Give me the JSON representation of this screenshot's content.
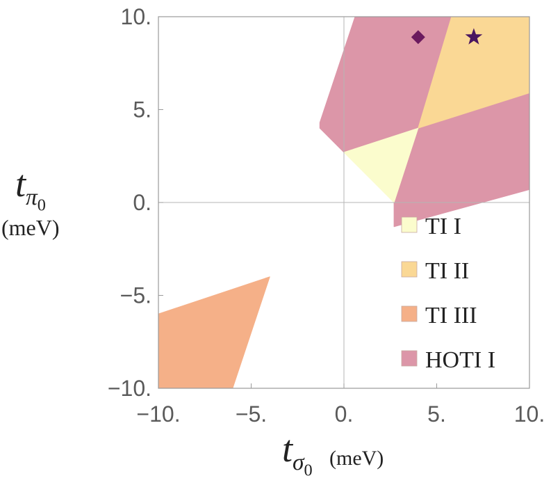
{
  "chart_data": {
    "type": "area",
    "xlabel": {
      "var": "t",
      "sub": "σ",
      "subsub": "0",
      "unit": "(meV)"
    },
    "ylabel": {
      "var": "t",
      "sub": "π",
      "subsub": "0",
      "unit": "(meV)"
    },
    "xlim": [
      -10,
      10
    ],
    "ylim": [
      -10,
      10
    ],
    "xticks": [
      {
        "value": -10,
        "label": "−10."
      },
      {
        "value": -5,
        "label": "−5."
      },
      {
        "value": 0,
        "label": "0."
      },
      {
        "value": 5,
        "label": "5."
      },
      {
        "value": 10,
        "label": "10."
      }
    ],
    "yticks": [
      {
        "value": -10,
        "label": "−10."
      },
      {
        "value": -5,
        "label": "−5."
      },
      {
        "value": 0,
        "label": "0."
      },
      {
        "value": 5,
        "label": "5."
      },
      {
        "value": 10,
        "label": "10."
      }
    ],
    "grid": false,
    "legend_position": "bottom-right",
    "regions": [
      {
        "name": "HOTI I",
        "color": "#dc96a8",
        "polygons": [
          [
            [
              0.6,
              10
            ],
            [
              5.8,
              10
            ],
            [
              4,
              4
            ],
            [
              0,
              2.7
            ],
            [
              -1.3,
              4
            ],
            [
              -1.3,
              4.3
            ]
          ],
          [
            [
              4,
              4
            ],
            [
              10,
              5.9
            ],
            [
              10,
              0.7
            ],
            [
              2.7,
              -1.3
            ],
            [
              2.7,
              0
            ]
          ]
        ]
      },
      {
        "name": "TI II",
        "color": "#fad895",
        "polygons": [
          [
            [
              5.8,
              10
            ],
            [
              10,
              10
            ],
            [
              10,
              5.9
            ],
            [
              4,
              4
            ]
          ]
        ]
      },
      {
        "name": "TI I",
        "color": "#fbfccd",
        "polygons": [
          [
            [
              0,
              2.7
            ],
            [
              4,
              4
            ],
            [
              2.7,
              0
            ]
          ]
        ]
      },
      {
        "name": "TI III",
        "color": "#f5b088",
        "polygons": [
          [
            [
              -10,
              -6
            ],
            [
              -4,
              -4
            ],
            [
              -6,
              -10
            ],
            [
              -10,
              -10
            ]
          ]
        ]
      }
    ],
    "markers": [
      {
        "shape": "diamond",
        "x": 4,
        "y": 8.9,
        "color": "#6b1a5e"
      },
      {
        "shape": "star",
        "x": 7,
        "y": 8.9,
        "color": "#4a1660"
      }
    ],
    "legend": [
      {
        "label": "TI I",
        "color": "#fbfccd"
      },
      {
        "label": "TI II",
        "color": "#fad895"
      },
      {
        "label": "TI III",
        "color": "#f5b088"
      },
      {
        "label": "HOTI I",
        "color": "#dc96a8"
      }
    ]
  }
}
